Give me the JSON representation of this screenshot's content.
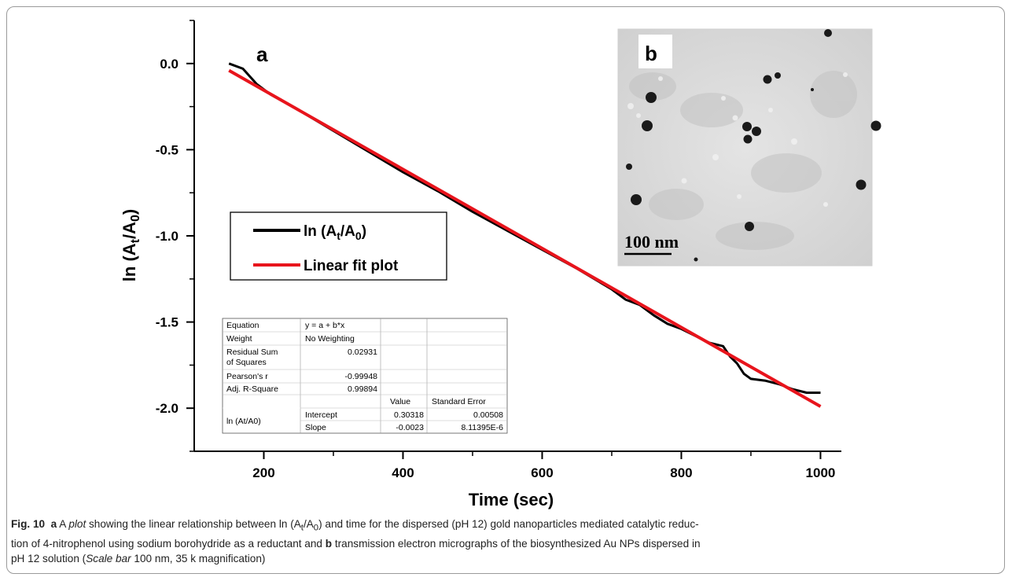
{
  "panel_labels": {
    "a": "a",
    "b": "b"
  },
  "chart_data": {
    "type": "line",
    "xlabel": "Time (sec)",
    "ylabel": "ln (A",
    "ylabel_sub": "t",
    "ylabel_mid": "/A",
    "ylabel_sub2": "0",
    "ylabel_end": ")",
    "xlim": [
      100,
      1030
    ],
    "ylim": [
      -2.25,
      0.25
    ],
    "x_ticks": [
      200,
      400,
      600,
      800,
      1000
    ],
    "x_tick_labels": [
      "200",
      "400",
      "600",
      "800",
      "1000"
    ],
    "y_ticks": [
      0.0,
      -0.5,
      -1.0,
      -1.5,
      -2.0
    ],
    "y_tick_labels": [
      "0.0",
      "-0.5",
      "-1.0",
      "-1.5",
      "-2.0"
    ],
    "series": [
      {
        "name": "ln (At/A0)",
        "color": "#000000",
        "x": [
          150,
          170,
          190,
          210,
          250,
          300,
          350,
          400,
          450,
          500,
          550,
          600,
          650,
          700,
          720,
          740,
          760,
          780,
          800,
          820,
          840,
          860,
          870,
          880,
          890,
          900,
          920,
          940,
          960,
          980,
          1000
        ],
        "y": [
          0.0,
          -0.03,
          -0.12,
          -0.18,
          -0.27,
          -0.39,
          -0.51,
          -0.63,
          -0.74,
          -0.86,
          -0.97,
          -1.08,
          -1.19,
          -1.31,
          -1.37,
          -1.4,
          -1.46,
          -1.51,
          -1.54,
          -1.58,
          -1.62,
          -1.64,
          -1.7,
          -1.74,
          -1.8,
          -1.83,
          -1.84,
          -1.86,
          -1.89,
          -1.91,
          -1.91
        ]
      },
      {
        "name": "Linear fit plot",
        "color": "#e8141c",
        "x": [
          150,
          1000
        ],
        "y": [
          -0.04,
          -1.99
        ]
      }
    ],
    "legend": {
      "position": "middle-left",
      "entries": [
        {
          "label_main": "ln (A",
          "sub": "t",
          "label_mid": "/A",
          "sub2": "0",
          "label_end": ")"
        },
        {
          "label_main": "Linear fit plot"
        }
      ]
    },
    "fit_table": {
      "rows": [
        [
          "Equation",
          "y = a + b*x",
          "",
          ""
        ],
        [
          "Weight",
          "No Weighting",
          "",
          ""
        ],
        [
          "Residual Sum of Squares",
          "0.02931",
          "",
          ""
        ],
        [
          "Pearson's r",
          "-0.99948",
          "",
          ""
        ],
        [
          "Adj. R-Square",
          "0.99894",
          "",
          ""
        ]
      ],
      "col_headers": [
        "",
        "",
        "Value",
        "Standard Error"
      ],
      "series_label": "ln (At/A0)",
      "param_rows": [
        [
          "Intercept",
          "0.30318",
          "0.00508"
        ],
        [
          "Slope",
          "-0.0023",
          "8.11395E-6"
        ]
      ],
      "rss_line1": "Residual Sum",
      "rss_line2": "of Squares"
    }
  },
  "inset": {
    "panel": "b",
    "scale_bar_label": "100 nm"
  },
  "caption": {
    "fig_no": "Fig. 10",
    "a": "a",
    "part1": " A ",
    "plot_word": "plot",
    "part2": " showing the linear relationship between ln (A",
    "sub_t": "t",
    "part3": "/A",
    "sub_0": "0",
    "part4": ") and time for the dispersed (pH 12) gold nanoparticles mediated catalytic reduc-",
    "line2": "tion of 4-nitrophenol using sodium borohydride as a reductant and ",
    "b": "b",
    "line2b": " transmission electron micrographs of the biosynthesized Au NPs dispersed in",
    "line3": "pH 12 solution (",
    "scale_word": "Scale bar",
    "line3b": " 100 nm, 35 k magnification)"
  }
}
